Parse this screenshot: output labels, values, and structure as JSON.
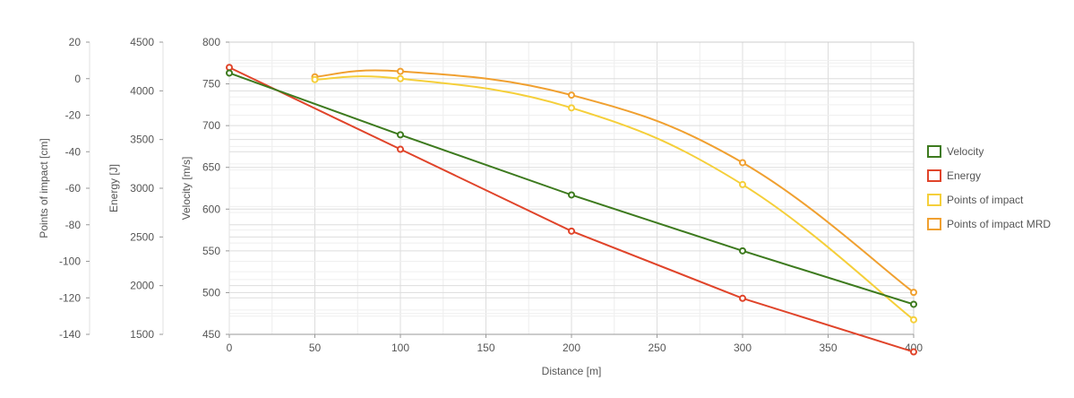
{
  "chart_data": {
    "type": "line",
    "xlabel": "Distance [m]",
    "x_ticks": [
      0,
      50,
      100,
      150,
      200,
      250,
      300,
      350,
      400
    ],
    "xlim": [
      0,
      400
    ],
    "grid": true,
    "legend_position": "right",
    "axes": [
      {
        "id": "poi",
        "label": "Points of impact [cm]",
        "ylim": [
          -140,
          20
        ],
        "ticks": [
          20,
          0,
          -20,
          -40,
          -60,
          -80,
          -100,
          -120,
          -140
        ]
      },
      {
        "id": "energy",
        "label": "Energy [J]",
        "ylim": [
          1500,
          4500
        ],
        "ticks": [
          4500,
          4000,
          3500,
          3000,
          2500,
          2000,
          1500
        ]
      },
      {
        "id": "velocity",
        "label": "Velocity [m/s]",
        "ylim": [
          450,
          800
        ],
        "ticks": [
          800,
          750,
          700,
          650,
          600,
          550,
          500,
          450
        ]
      }
    ],
    "series": [
      {
        "name": "Velocity",
        "axis": "velocity",
        "color": "#3d7a1e",
        "curved": false,
        "x": [
          0,
          100,
          200,
          300,
          400
        ],
        "y": [
          763,
          689,
          617,
          550,
          486
        ]
      },
      {
        "name": "Energy",
        "axis": "energy",
        "color": "#e0442a",
        "curved": false,
        "x": [
          0,
          100,
          200,
          300,
          400
        ],
        "y": [
          4240,
          3400,
          2560,
          1870,
          1320
        ]
      },
      {
        "name": "Points of impact",
        "axis": "poi",
        "color": "#f5cf3a",
        "curved": true,
        "x": [
          50,
          100,
          200,
          300,
          400
        ],
        "y": [
          -0.5,
          0,
          -16,
          -58,
          -132
        ]
      },
      {
        "name": "Points of impact MRD",
        "axis": "poi",
        "color": "#f0a030",
        "curved": true,
        "x": [
          50,
          100,
          200,
          300,
          400
        ],
        "y": [
          1,
          4,
          -9,
          -46,
          -117
        ]
      }
    ]
  }
}
